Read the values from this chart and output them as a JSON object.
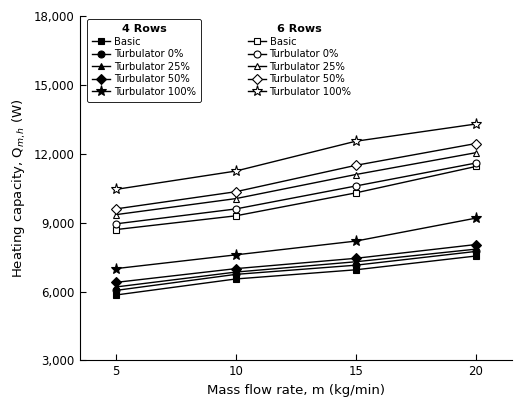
{
  "x": [
    5,
    10,
    15,
    20
  ],
  "series_4rows": {
    "Basic": [
      5850,
      6550,
      6950,
      7550
    ],
    "Turbulator0": [
      6050,
      6750,
      7150,
      7750
    ],
    "Turbulator25": [
      6200,
      6850,
      7300,
      7850
    ],
    "Turbulator50": [
      6400,
      7000,
      7450,
      8050
    ],
    "Turbulator100": [
      7000,
      7600,
      8200,
      9200
    ]
  },
  "series_6rows": {
    "Basic": [
      8700,
      9300,
      10300,
      11450
    ],
    "Turbulator0": [
      8950,
      9600,
      10600,
      11600
    ],
    "Turbulator25": [
      9350,
      10050,
      11100,
      12050
    ],
    "Turbulator50": [
      9600,
      10350,
      11500,
      12450
    ],
    "Turbulator100": [
      10450,
      11250,
      12550,
      13300
    ]
  },
  "xlabel": "Mass flow rate, m (kg/min)",
  "ylabel": "Heating capacity, Q$_{m,h}$ (W)",
  "ylim": [
    3000,
    18000
  ],
  "yticks": [
    3000,
    6000,
    9000,
    12000,
    15000,
    18000
  ],
  "ytick_labels": [
    "3,000",
    "6,000",
    "9,000",
    "12,000",
    "15,000",
    "18,000"
  ],
  "xticks": [
    5,
    10,
    15,
    20
  ],
  "legend_4rows_title": "4 Rows",
  "legend_6rows_title": "6 Rows",
  "legend_labels": [
    "Basic",
    "Turbulator 0%",
    "Turbulator 25%",
    "Turbulator 50%",
    "Turbulator 100%"
  ],
  "color": "black",
  "linewidth": 1.0,
  "markersize": 5
}
